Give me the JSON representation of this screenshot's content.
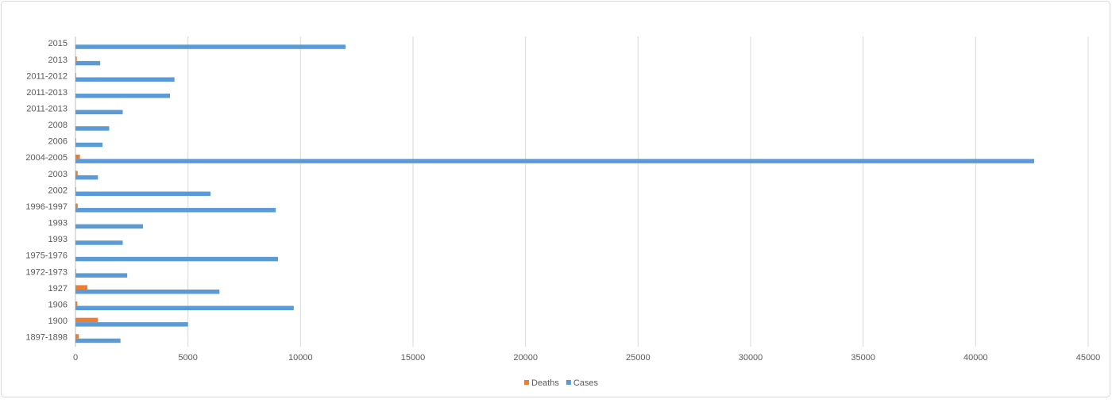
{
  "chart_data": {
    "type": "hbar",
    "categories": [
      "1897-1898",
      "1900",
      "1906",
      "1927",
      "1972-1973",
      "1975-1976",
      "1993",
      "1993",
      "1996-1997",
      "2002",
      "2003",
      "2004-2005",
      "2006",
      "2008",
      "2011-2013",
      "2011-2013",
      "2011-2012",
      "2013",
      "2015"
    ],
    "series": [
      {
        "name": "Deaths",
        "color": "#ed7d31",
        "values": [
          150,
          1000,
          80,
          530,
          30,
          0,
          0,
          0,
          100,
          30,
          100,
          200,
          30,
          0,
          0,
          0,
          30,
          60,
          0
        ]
      },
      {
        "name": "Cases",
        "color": "#5b9bd5",
        "values": [
          2000,
          5000,
          9700,
          6400,
          2300,
          9000,
          2100,
          3000,
          8900,
          6000,
          1000,
          42600,
          1200,
          1500,
          2100,
          4200,
          4400,
          1100,
          12000
        ]
      }
    ],
    "xlim": [
      0,
      45000
    ],
    "xticks": [
      0,
      5000,
      10000,
      15000,
      20000,
      25000,
      30000,
      35000,
      40000,
      45000
    ],
    "grid": true,
    "legend": "bottom"
  }
}
